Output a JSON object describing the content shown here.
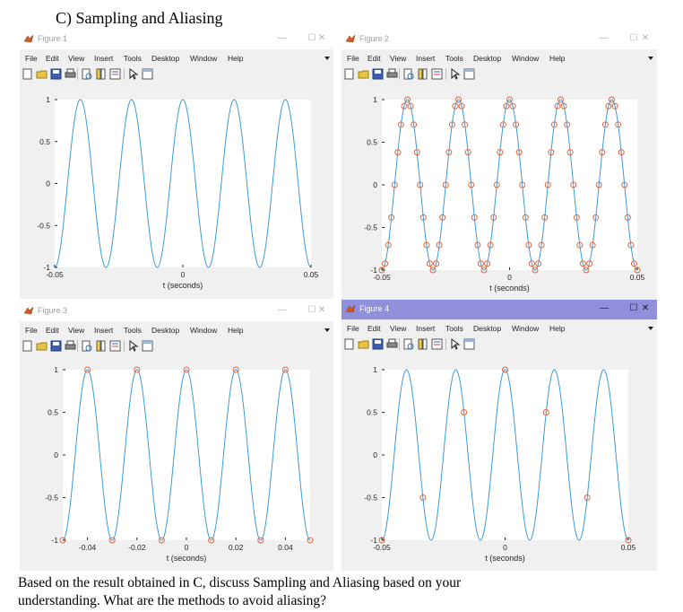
{
  "heading": "C) Sampling and Aliasing",
  "menu_items": [
    "File",
    "Edit",
    "View",
    "Insert",
    "Tools",
    "Desktop",
    "Window",
    "Help"
  ],
  "icons": [
    "new-file-icon",
    "open-file-icon",
    "save-icon",
    "print-icon",
    "print-preview-icon",
    "insert-colorbar-icon",
    "insert-legend-icon",
    "pointer-icon",
    "property-editor-icon"
  ],
  "window_buttons": {
    "minimize": "—",
    "maximize": "☐",
    "close": "✕"
  },
  "colors": {
    "signal": "#3d9ad8",
    "sample_marker": "#e0663c",
    "active_titlebar": "#8f8fdc",
    "window_bg": "#f0f0f0",
    "axes_bg": "#ffffff"
  },
  "figures": [
    {
      "title": "Figure 1",
      "active": false,
      "xlabel": "t (seconds)",
      "show_xlabel": true,
      "xticks": [
        "-0.05",
        "0",
        "0.05"
      ],
      "yticks": [
        "1",
        "0.5",
        "0",
        "-0.5",
        "-1"
      ]
    },
    {
      "title": "Figure 2",
      "active": false,
      "xlabel": "t (seconds)",
      "show_xlabel": true,
      "xticks": [
        "-0.05",
        "0",
        "0.05"
      ],
      "yticks": [
        "1",
        "0.5",
        "0",
        "-0.5",
        "-1"
      ]
    },
    {
      "title": "Figure 3",
      "active": false,
      "xlabel": "t (seconds)",
      "show_xlabel": true,
      "xticks": [
        "-0.04",
        "-0.02",
        "0",
        "0.02",
        "0.04"
      ],
      "yticks": [
        "1",
        "0.5",
        "0",
        "-0.5",
        "-1"
      ]
    },
    {
      "title": "Figure 4",
      "active": true,
      "xlabel": "t (seconds)",
      "show_xlabel": true,
      "xticks": [
        "-0.05",
        "0",
        "0.05"
      ],
      "yticks": [
        "1",
        "0.5",
        "0",
        "-0.5",
        "-1"
      ]
    }
  ],
  "chart_data": [
    {
      "type": "line",
      "title": "",
      "xlabel": "",
      "ylabel": "",
      "xlim": [
        -0.05,
        0.05
      ],
      "ylim": [
        -1,
        1
      ],
      "grid": false,
      "series": [
        {
          "kind": "continuous",
          "function": "cos(2*pi*50*t)",
          "frequency_hz": 50
        }
      ]
    },
    {
      "type": "line",
      "title": "",
      "xlabel": "t (seconds)",
      "ylabel": "",
      "xlim": [
        -0.05,
        0.05
      ],
      "ylim": [
        -1,
        1
      ],
      "grid": false,
      "series": [
        {
          "kind": "continuous",
          "function": "cos(2*pi*50*t)",
          "frequency_hz": 50
        },
        {
          "kind": "samples",
          "marker": "o",
          "sampling_rate_hz": 800,
          "function": "cos(2*pi*50*t)"
        }
      ]
    },
    {
      "type": "line",
      "title": "",
      "xlabel": "t (seconds)",
      "ylabel": "",
      "xlim": [
        -0.05,
        0.05
      ],
      "ylim": [
        -1,
        1
      ],
      "grid": false,
      "series": [
        {
          "kind": "continuous",
          "function": "cos(2*pi*50*t)",
          "frequency_hz": 50
        },
        {
          "kind": "samples",
          "marker": "o",
          "sampling_rate_hz": 100,
          "function": "cos(2*pi*50*t)"
        }
      ]
    },
    {
      "type": "line",
      "title": "",
      "xlabel": "t (seconds)",
      "ylabel": "",
      "xlim": [
        -0.05,
        0.05
      ],
      "ylim": [
        -1,
        1
      ],
      "grid": false,
      "series": [
        {
          "kind": "continuous",
          "function": "cos(2*pi*50*t)",
          "frequency_hz": 50
        },
        {
          "kind": "samples",
          "marker": "o",
          "sampling_rate_hz": 60,
          "function": "cos(2*pi*50*t)"
        }
      ]
    }
  ],
  "caption_lines": [
    "Based on the result obtained in C, discuss Sampling and Aliasing based on your",
    "understanding. What are the methods to avoid aliasing?"
  ]
}
